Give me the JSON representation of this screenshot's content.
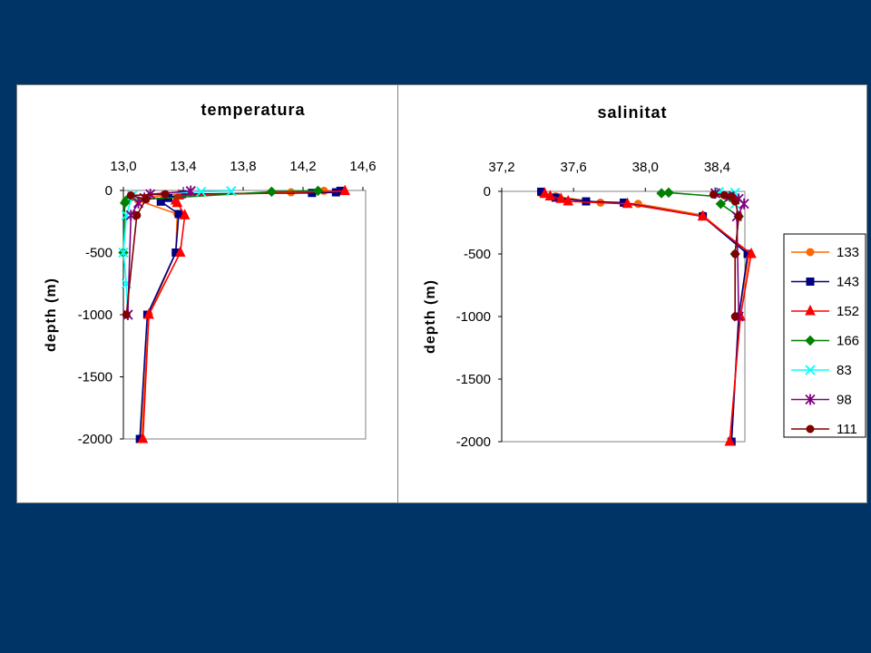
{
  "chart_data": [
    {
      "type": "scatter",
      "title": "temperatura",
      "ylabel": "depth (m)",
      "xlim": [
        13.0,
        14.6
      ],
      "ylim": [
        -2000,
        0
      ],
      "xticks": [
        "13,0",
        "13,4",
        "13,8",
        "14,2",
        "14,6"
      ],
      "yticks": [
        "0",
        "-500",
        "-1000",
        "-1500",
        "-2000"
      ],
      "series": [
        {
          "name": "133",
          "color": "#ff6600",
          "marker": "circle",
          "points": [
            [
              14.34,
              -3
            ],
            [
              14.12,
              -15
            ],
            [
              13.27,
              -35
            ],
            [
              13.1,
              -80
            ],
            [
              13.36,
              -190
            ],
            [
              13.35,
              -500
            ],
            [
              13.17,
              -1000
            ],
            [
              13.12,
              -2000
            ]
          ]
        },
        {
          "name": "143",
          "color": "#000080",
          "marker": "square",
          "points": [
            [
              14.45,
              -3
            ],
            [
              14.42,
              -15
            ],
            [
              14.26,
              -20
            ],
            [
              13.39,
              -30
            ],
            [
              13.3,
              -60
            ],
            [
              13.25,
              -90
            ],
            [
              13.37,
              -190
            ],
            [
              13.35,
              -500
            ],
            [
              13.16,
              -1000
            ],
            [
              13.11,
              -2000
            ]
          ]
        },
        {
          "name": "152",
          "color": "#ff0000",
          "marker": "triangle",
          "points": [
            [
              14.48,
              -5
            ],
            [
              13.37,
              -40
            ],
            [
              13.35,
              -80
            ],
            [
              13.36,
              -100
            ],
            [
              13.41,
              -200
            ],
            [
              13.38,
              -500
            ],
            [
              13.17,
              -1000
            ],
            [
              13.13,
              -2000
            ]
          ]
        },
        {
          "name": "166",
          "color": "#008000",
          "marker": "diamond",
          "points": [
            [
              14.3,
              -3
            ],
            [
              13.99,
              -10
            ],
            [
              13.02,
              -80
            ],
            [
              13.01,
              -100
            ],
            [
              13.0,
              -500
            ]
          ]
        },
        {
          "name": "83",
          "color": "#00ffff",
          "marker": "x",
          "points": [
            [
              13.72,
              -5
            ],
            [
              13.52,
              -10
            ],
            [
              13.06,
              -40
            ],
            [
              13.02,
              -200
            ],
            [
              13.0,
              -500
            ],
            [
              13.02,
              -750
            ],
            [
              13.03,
              -1000
            ]
          ]
        },
        {
          "name": "98",
          "color": "#800080",
          "marker": "star",
          "points": [
            [
              13.45,
              -5
            ],
            [
              13.18,
              -30
            ],
            [
              13.14,
              -60
            ],
            [
              13.1,
              -100
            ],
            [
              13.05,
              -200
            ],
            [
              13.03,
              -1000
            ]
          ]
        },
        {
          "name": "111",
          "color": "#800000",
          "marker": "circle",
          "points": [
            [
              13.28,
              -30
            ],
            [
              13.05,
              -40
            ],
            [
              13.15,
              -70
            ],
            [
              13.09,
              -200
            ],
            [
              13.02,
              -1000
            ]
          ]
        }
      ]
    },
    {
      "type": "scatter",
      "title": "salinitat",
      "ylabel": "depth (m)",
      "xlim": [
        37.2,
        38.6
      ],
      "ylim": [
        -2000,
        0
      ],
      "xticks": [
        "37,2",
        "37,6",
        "38,0",
        "38,4"
      ],
      "yticks": [
        "0",
        "-500",
        "-1000",
        "-1500",
        "-2000"
      ],
      "series": [
        {
          "name": "133",
          "color": "#ff6600",
          "marker": "circle",
          "points": [
            [
              37.42,
              -15
            ],
            [
              37.5,
              -40
            ],
            [
              37.75,
              -90
            ],
            [
              37.96,
              -100
            ],
            [
              38.32,
              -190
            ],
            [
              38.58,
              -500
            ],
            [
              38.52,
              -1000
            ],
            [
              38.48,
              -2000
            ]
          ]
        },
        {
          "name": "143",
          "color": "#000080",
          "marker": "square",
          "points": [
            [
              37.42,
              -3
            ],
            [
              37.5,
              -50
            ],
            [
              37.67,
              -80
            ],
            [
              37.88,
              -90
            ],
            [
              38.32,
              -200
            ],
            [
              38.57,
              -500
            ],
            [
              38.52,
              -1000
            ],
            [
              38.48,
              -2000
            ]
          ]
        },
        {
          "name": "152",
          "color": "#ff0000",
          "marker": "triangle",
          "points": [
            [
              37.44,
              -20
            ],
            [
              37.47,
              -40
            ],
            [
              37.53,
              -60
            ],
            [
              37.57,
              -80
            ],
            [
              37.9,
              -100
            ],
            [
              38.32,
              -200
            ],
            [
              38.59,
              -500
            ],
            [
              38.53,
              -1000
            ],
            [
              38.47,
              -2000
            ]
          ]
        },
        {
          "name": "166",
          "color": "#008000",
          "marker": "diamond",
          "points": [
            [
              38.09,
              -15
            ],
            [
              38.13,
              -10
            ],
            [
              38.48,
              -50
            ],
            [
              38.42,
              -100
            ],
            [
              38.52,
              -200
            ],
            [
              38.5,
              -500
            ]
          ]
        },
        {
          "name": "83",
          "color": "#00ffff",
          "marker": "x",
          "points": [
            [
              38.41,
              -5
            ],
            [
              38.5,
              -10
            ],
            [
              38.46,
              -30
            ],
            [
              38.5,
              -100
            ]
          ]
        },
        {
          "name": "98",
          "color": "#800080",
          "marker": "star",
          "points": [
            [
              38.39,
              -15
            ],
            [
              38.47,
              -40
            ],
            [
              38.52,
              -60
            ],
            [
              38.55,
              -100
            ],
            [
              38.51,
              -200
            ],
            [
              38.52,
              -1000
            ]
          ]
        },
        {
          "name": "111",
          "color": "#800000",
          "marker": "circle",
          "points": [
            [
              38.38,
              -25
            ],
            [
              38.44,
              -30
            ],
            [
              38.48,
              -40
            ],
            [
              38.5,
              -80
            ],
            [
              38.52,
              -200
            ],
            [
              38.5,
              -500
            ],
            [
              38.5,
              -1000
            ]
          ]
        }
      ]
    }
  ]
}
